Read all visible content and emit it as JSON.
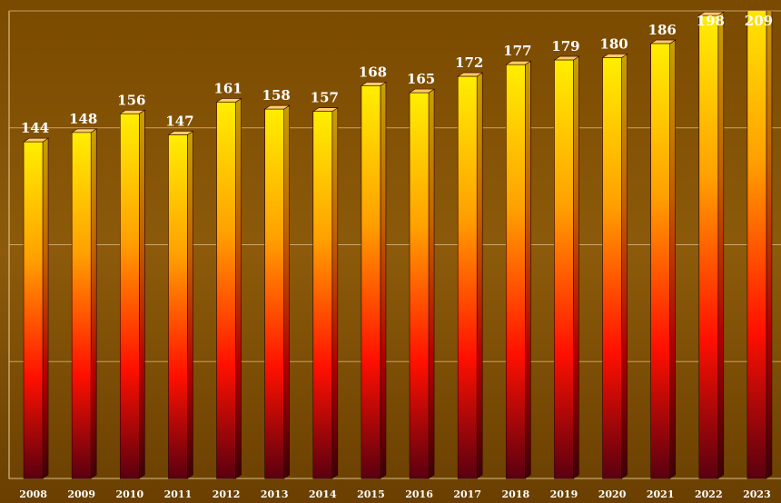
{
  "chart_data": {
    "type": "bar",
    "categories": [
      "2008",
      "2009",
      "2010",
      "2011",
      "2012",
      "2013",
      "2014",
      "2015",
      "2016",
      "2017",
      "2018",
      "2019",
      "2020",
      "2021",
      "2022",
      "2023"
    ],
    "values": [
      144,
      148,
      156,
      147,
      161,
      158,
      157,
      168,
      165,
      172,
      177,
      179,
      180,
      186,
      198,
      209
    ],
    "ylim": [
      0,
      200
    ],
    "yticks": [
      0,
      50,
      100,
      150,
      200
    ],
    "grid": true
  }
}
